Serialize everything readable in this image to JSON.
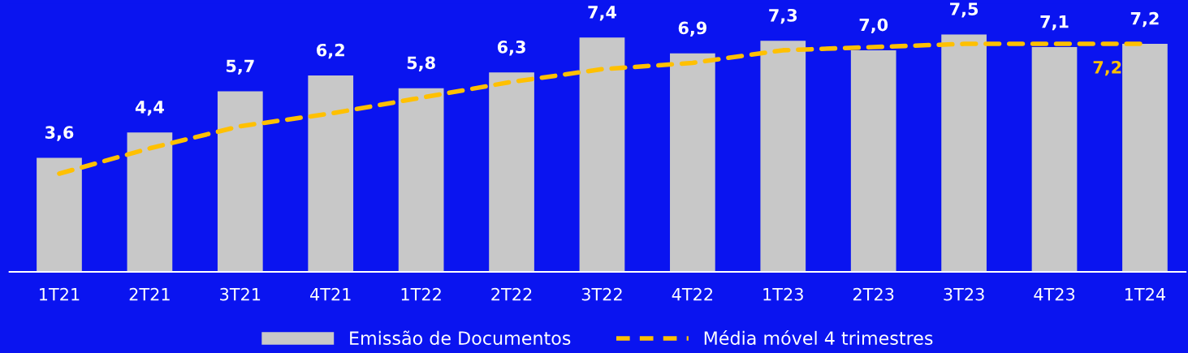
{
  "chart_data": {
    "type": "bar",
    "categories": [
      "1T21",
      "2T21",
      "3T21",
      "4T21",
      "1T22",
      "2T22",
      "3T22",
      "4T22",
      "1T23",
      "2T23",
      "3T23",
      "4T23",
      "1T24"
    ],
    "series": [
      {
        "name": "Emissão de Documentos",
        "color": "#c8c8c8",
        "values": [
          3.6,
          4.4,
          5.7,
          6.2,
          5.8,
          6.3,
          7.4,
          6.9,
          7.3,
          7.0,
          7.5,
          7.1,
          7.2
        ],
        "value_labels": [
          "3,6",
          "4,4",
          "5,7",
          "6,2",
          "5,8",
          "6,3",
          "7,4",
          "6,9",
          "7,3",
          "7,0",
          "7,5",
          "7,1",
          "7,2"
        ]
      },
      {
        "name": "Média móvel 4 trimestres",
        "type": "line",
        "color": "#ffc000",
        "line_style": "dashed",
        "values": [
          3.1,
          3.9,
          4.6,
          5.0,
          5.5,
          6.0,
          6.4,
          6.6,
          7.0,
          7.1,
          7.2,
          7.2,
          7.2
        ],
        "value_labels": [
          null,
          null,
          null,
          null,
          null,
          null,
          null,
          null,
          null,
          null,
          null,
          null,
          "7,2"
        ]
      }
    ],
    "tick_labels": "x",
    "legend": "bottom",
    "grid": false
  }
}
